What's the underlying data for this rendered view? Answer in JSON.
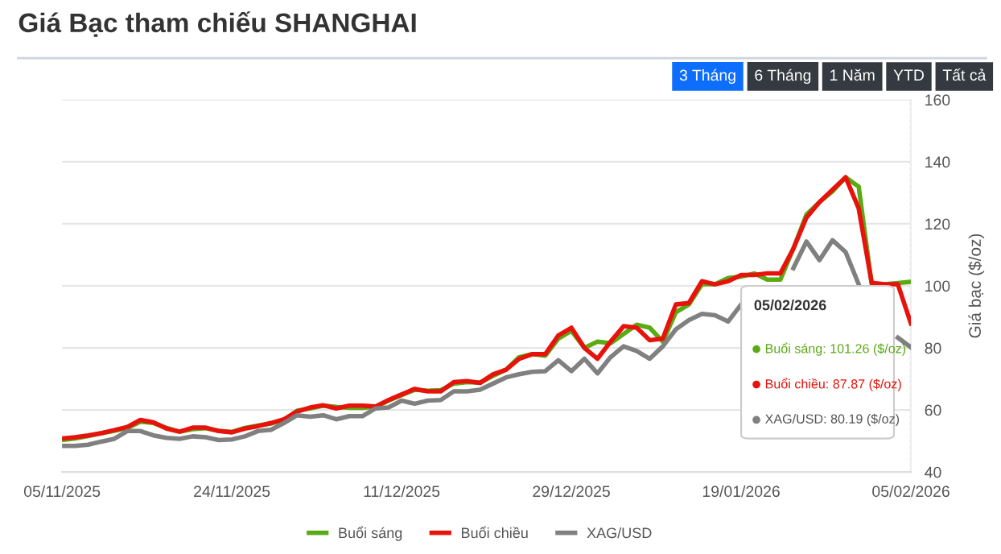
{
  "chart_data": {
    "type": "line",
    "title": "Giá Bạc tham chiếu SHANGHAI",
    "ylabel": "Giá bạc ($/oz)",
    "categories": [
      "05/11/2025",
      null,
      null,
      null,
      null,
      null,
      null,
      null,
      null,
      null,
      null,
      null,
      null,
      "24/11/2025",
      null,
      null,
      null,
      null,
      null,
      null,
      null,
      null,
      null,
      null,
      null,
      null,
      "11/12/2025",
      null,
      null,
      null,
      null,
      null,
      null,
      null,
      null,
      null,
      null,
      null,
      null,
      "29/12/2025",
      null,
      null,
      null,
      null,
      null,
      null,
      null,
      null,
      null,
      null,
      null,
      null,
      "19/01/2026",
      null,
      null,
      null,
      null,
      null,
      null,
      null,
      null,
      null,
      null,
      null,
      null,
      "05/02/2026"
    ],
    "series": [
      {
        "name": "Buổi sáng",
        "color": "#5aaa14",
        "values": [
          50.3,
          50.8,
          51.6,
          52.5,
          53.3,
          54.2,
          56.2,
          55.8,
          54.2,
          53,
          53.8,
          54.1,
          53.3,
          52.9,
          54.2,
          55,
          55.6,
          56.8,
          59.8,
          60.5,
          61.4,
          61,
          60.7,
          60.7,
          61,
          63,
          64.8,
          66.5,
          66.2,
          66.4,
          68.5,
          69,
          68.8,
          71,
          73,
          77,
          78,
          77.5,
          83,
          85.5,
          80,
          82,
          81.5,
          84.5,
          87.5,
          86.5,
          82,
          91.5,
          94,
          100.5,
          100.5,
          102.5,
          103,
          104,
          102,
          102,
          112,
          123,
          127,
          130.5,
          135,
          132,
          100.5,
          100.5,
          100.9,
          101.3
        ]
      },
      {
        "name": "Buổi chiều",
        "color": "#e8120c",
        "values": [
          50.8,
          51.2,
          51.8,
          52.5,
          53.5,
          54.5,
          56.8,
          56,
          54,
          53,
          54.3,
          54.3,
          53.2,
          52.8,
          54,
          54.8,
          55.8,
          57,
          59.5,
          60.8,
          61.5,
          60.5,
          61.4,
          61.4,
          61.1,
          63.2,
          65,
          66.8,
          66,
          66,
          69,
          69.3,
          68.7,
          71.5,
          73,
          76.5,
          78,
          78,
          84,
          86.5,
          80,
          76.5,
          82,
          87,
          86.5,
          82.5,
          83,
          94,
          94.5,
          101.5,
          100.5,
          101.5,
          103.5,
          103.5,
          104,
          104,
          112,
          122,
          127,
          131,
          135,
          125,
          101,
          100.5,
          100.5,
          87.9
        ]
      },
      {
        "name": "XAG/USD",
        "color": "#808080",
        "values": [
          48.4,
          48.4,
          48.8,
          49.8,
          50.7,
          53.2,
          53.2,
          51.8,
          51,
          50.7,
          51.5,
          51.2,
          50.3,
          50.5,
          51.5,
          53.2,
          53.6,
          55.8,
          58.3,
          57.8,
          58.3,
          57,
          58,
          58,
          60.5,
          60.8,
          63,
          62,
          63,
          63.2,
          66,
          66,
          66.5,
          68.5,
          70.5,
          71.5,
          72.3,
          72.5,
          76,
          72.5,
          76.5,
          71.8,
          77,
          80.5,
          79,
          76.5,
          80.5,
          86,
          89,
          91,
          90.5,
          88.5,
          94,
          null,
          null,
          null,
          105.7,
          114.3,
          108.3,
          114.7,
          110.9,
          100.5,
          null,
          null,
          83.3,
          80.2
        ]
      }
    ],
    "ylim": [
      40,
      160
    ],
    "yticks": [
      40,
      60,
      80,
      100,
      120,
      140,
      160
    ],
    "grid": "y",
    "legend": "bottom",
    "marker": "none",
    "line_style": "solid",
    "ref_lines": [
      {
        "axis": "x",
        "value": "05/02/2026",
        "line_style": "dotted",
        "color": "#cccccc"
      }
    ],
    "annotations": [
      "3 Tháng",
      "6 Tháng",
      "1 Năm",
      "YTD",
      "Tất cả",
      "05/02/2026",
      "Buổi sáng: 101.26 ($/oz)",
      "Buổi chiều: 87.87 ($/oz)",
      "XAG/USD: 80.19 ($/oz)"
    ]
  }
}
